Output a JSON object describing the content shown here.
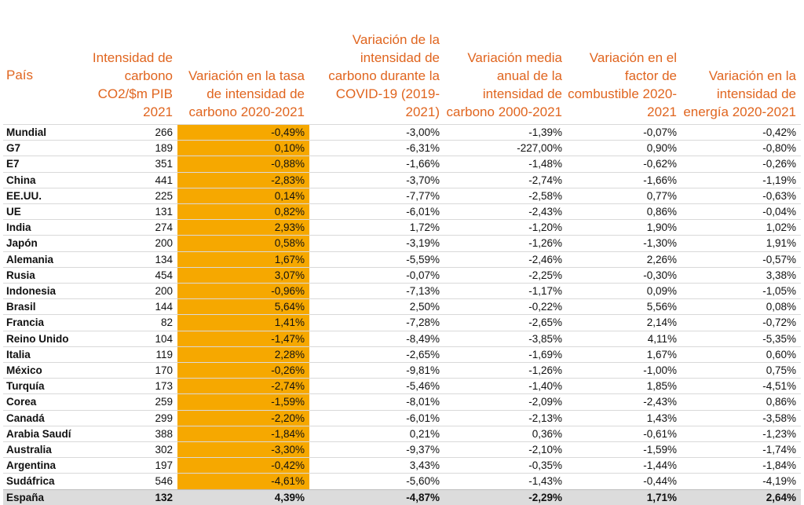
{
  "headers": [
    "País",
    "Intensidad de carbono CO2/$m PIB 2021",
    "Variación en la tasa de intensidad de carbono 2020-2021",
    "Variación de la intensidad de carbono durante la COVID-19 (2019-2021)",
    "Variación media anual de la intensidad de carbono 2000-2021",
    "Variación en el factor de combustible 2020-2021",
    "Variación en la intensidad de energía 2020-2021"
  ],
  "highlight_color": "#f6a800",
  "header_color": "#e0651f",
  "rows": [
    [
      "Mundial",
      "266",
      "-0,49%",
      "-3,00%",
      "-1,39%",
      "-0,07%",
      "-0,42%"
    ],
    [
      "G7",
      "189",
      "0,10%",
      "-6,31%",
      "-227,00%",
      "0,90%",
      "-0,80%"
    ],
    [
      "E7",
      "351",
      "-0,88%",
      "-1,66%",
      "-1,48%",
      "-0,62%",
      "-0,26%"
    ],
    [
      "China",
      "441",
      "-2,83%",
      "-3,70%",
      "-2,74%",
      "-1,66%",
      "-1,19%"
    ],
    [
      "EE.UU.",
      "225",
      "0,14%",
      "-7,77%",
      "-2,58%",
      "0,77%",
      "-0,63%"
    ],
    [
      "UE",
      "131",
      "0,82%",
      "-6,01%",
      "-2,43%",
      "0,86%",
      "-0,04%"
    ],
    [
      "India",
      "274",
      "2,93%",
      "1,72%",
      "-1,20%",
      "1,90%",
      "1,02%"
    ],
    [
      "Japón",
      "200",
      "0,58%",
      "-3,19%",
      "-1,26%",
      "-1,30%",
      "1,91%"
    ],
    [
      "Alemania",
      "134",
      "1,67%",
      "-5,59%",
      "-2,46%",
      "2,26%",
      "-0,57%"
    ],
    [
      "Rusia",
      "454",
      "3,07%",
      "-0,07%",
      "-2,25%",
      "-0,30%",
      "3,38%"
    ],
    [
      "Indonesia",
      "200",
      "-0,96%",
      "-7,13%",
      "-1,17%",
      "0,09%",
      "-1,05%"
    ],
    [
      "Brasil",
      "144",
      "5,64%",
      "2,50%",
      "-0,22%",
      "5,56%",
      "0,08%"
    ],
    [
      "Francia",
      "82",
      "1,41%",
      "-7,28%",
      "-2,65%",
      "2,14%",
      "-0,72%"
    ],
    [
      "Reino Unido",
      "104",
      "-1,47%",
      "-8,49%",
      "-3,85%",
      "4,11%",
      "-5,35%"
    ],
    [
      "Italia",
      "119",
      "2,28%",
      "-2,65%",
      "-1,69%",
      "1,67%",
      "0,60%"
    ],
    [
      "México",
      "170",
      "-0,26%",
      "-9,81%",
      "-1,26%",
      "-1,00%",
      "0,75%"
    ],
    [
      "Turquía",
      "173",
      "-2,74%",
      "-5,46%",
      "-1,40%",
      "1,85%",
      "-4,51%"
    ],
    [
      "Corea",
      "259",
      "-1,59%",
      "-8,01%",
      "-2,09%",
      "-2,43%",
      "0,86%"
    ],
    [
      "Canadá",
      "299",
      "-2,20%",
      "-6,01%",
      "-2,13%",
      "1,43%",
      "-3,58%"
    ],
    [
      "Arabia Saudí",
      "388",
      "-1,84%",
      "0,21%",
      "0,36%",
      "-0,61%",
      "-1,23%"
    ],
    [
      "Australia",
      "302",
      "-3,30%",
      "-9,37%",
      "-2,10%",
      "-1,59%",
      "-1,74%"
    ],
    [
      "Argentina",
      "197",
      "-0,42%",
      "3,43%",
      "-0,35%",
      "-1,44%",
      "-1,84%"
    ],
    [
      "Sudáfrica",
      "546",
      "-4,61%",
      "-5,60%",
      "-1,43%",
      "-0,44%",
      "-4,19%"
    ]
  ],
  "total_row": [
    "España",
    "132",
    "4,39%",
    "-4,87%",
    "-2,29%",
    "1,71%",
    "2,64%"
  ]
}
